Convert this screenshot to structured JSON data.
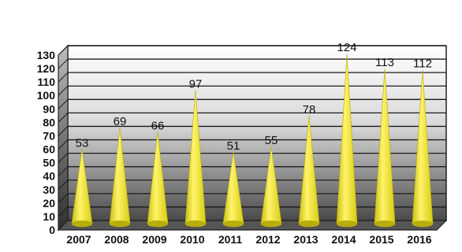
{
  "chart_data": {
    "type": "bar",
    "bar_shape": "cone",
    "categories": [
      "2007",
      "2008",
      "2009",
      "2010",
      "2011",
      "2012",
      "2013",
      "2014",
      "2015",
      "2016"
    ],
    "values": [
      53,
      69,
      66,
      97,
      51,
      55,
      78,
      124,
      113,
      112
    ],
    "data_labels": [
      "53",
      "69",
      "66",
      "97",
      "51",
      "55",
      "78",
      "124",
      "113",
      "112"
    ],
    "y_ticks": [
      "0",
      "10",
      "20",
      "30",
      "40",
      "50",
      "60",
      "70",
      "80",
      "90",
      "100",
      "110",
      "120",
      "130"
    ],
    "ylim": [
      0,
      130
    ],
    "title": "",
    "xlabel": "",
    "ylabel": "",
    "grid": true,
    "colors": {
      "bar": "#f2e61e",
      "bar_shade": "#b8ad0a",
      "plot_top": "#ffffff",
      "plot_bottom": "#444444",
      "frame": "#222222"
    }
  }
}
